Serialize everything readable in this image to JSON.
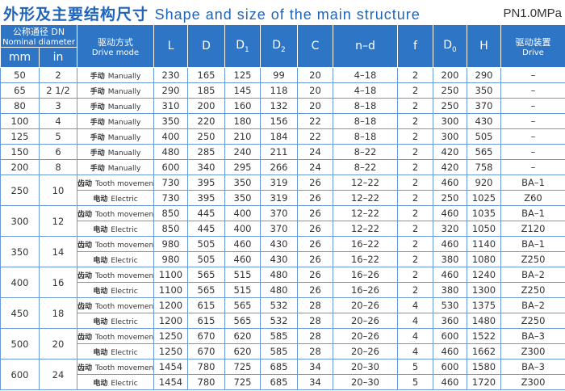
{
  "header": {
    "title_cn": "外形及主要结构尺寸",
    "title_en": "Shape and size of the main structure",
    "pressure": "PN1.0MPa"
  },
  "table": {
    "dn_cn": "公称通径 DN",
    "dn_en": "Nominal diameter",
    "mm": "mm",
    "in": "in",
    "columns": [
      {
        "cn": "驱动方式",
        "en": "Drive mode"
      },
      {
        "text": "L"
      },
      {
        "text": "D"
      },
      {
        "text": "D",
        "sub": "1"
      },
      {
        "text": "D",
        "sub": "2"
      },
      {
        "text": "C"
      },
      {
        "text": "n–d"
      },
      {
        "text": "f"
      },
      {
        "text": "D",
        "sub": "0"
      },
      {
        "text": "H"
      },
      {
        "cn": "驱动装置",
        "en": "Drive"
      }
    ],
    "groups": [
      {
        "mm": 50,
        "in": 2,
        "rows": [
          [
            "手动",
            "Manually",
            230,
            165,
            125,
            99,
            20,
            "4–18",
            2,
            200,
            290,
            "–"
          ]
        ]
      },
      {
        "mm": 65,
        "in": "2 1/2",
        "rows": [
          [
            "手动",
            "Manually",
            290,
            185,
            145,
            118,
            20,
            "4–18",
            2,
            250,
            350,
            "–"
          ]
        ]
      },
      {
        "mm": 80,
        "in": 3,
        "rows": [
          [
            "手动",
            "Manually",
            310,
            200,
            160,
            132,
            20,
            "8–18",
            2,
            250,
            370,
            "–"
          ]
        ]
      },
      {
        "mm": 100,
        "in": 4,
        "rows": [
          [
            "手动",
            "Manually",
            350,
            220,
            180,
            156,
            22,
            "8–18",
            2,
            300,
            430,
            "–"
          ]
        ]
      },
      {
        "mm": 125,
        "in": 5,
        "rows": [
          [
            "手动",
            "Manually",
            400,
            250,
            210,
            184,
            22,
            "8–18",
            2,
            300,
            505,
            "–"
          ]
        ]
      },
      {
        "mm": 150,
        "in": 6,
        "rows": [
          [
            "手动",
            "Manually",
            480,
            285,
            240,
            211,
            24,
            "8–22",
            2,
            420,
            565,
            "–"
          ]
        ]
      },
      {
        "mm": 200,
        "in": 8,
        "rows": [
          [
            "手动",
            "Manually",
            600,
            340,
            295,
            266,
            24,
            "8–22",
            2,
            420,
            758,
            "–"
          ]
        ]
      },
      {
        "mm": 250,
        "in": 10,
        "rows": [
          [
            "齿动",
            "Tooth movement",
            730,
            395,
            350,
            319,
            26,
            "12–22",
            2,
            460,
            920,
            "BA–1"
          ],
          [
            "电动",
            "Electric",
            730,
            395,
            350,
            319,
            26,
            "12–22",
            2,
            250,
            1025,
            "Z60"
          ]
        ]
      },
      {
        "mm": 300,
        "in": 12,
        "rows": [
          [
            "齿动",
            "Tooth movement",
            850,
            445,
            400,
            370,
            26,
            "12–22",
            2,
            460,
            1035,
            "BA–1"
          ],
          [
            "电动",
            "Electric",
            850,
            445,
            400,
            370,
            26,
            "12–22",
            2,
            320,
            1050,
            "Z120"
          ]
        ]
      },
      {
        "mm": 350,
        "in": 14,
        "rows": [
          [
            "齿动",
            "Tooth movement",
            980,
            505,
            460,
            430,
            26,
            "16–22",
            2,
            460,
            1140,
            "BA–1"
          ],
          [
            "电动",
            "Electric",
            980,
            505,
            460,
            430,
            26,
            "16–22",
            2,
            380,
            1080,
            "Z250"
          ]
        ]
      },
      {
        "mm": 400,
        "in": 16,
        "rows": [
          [
            "齿动",
            "Tooth movement",
            1100,
            565,
            515,
            480,
            26,
            "16–26",
            2,
            460,
            1240,
            "BA–2"
          ],
          [
            "电动",
            "Electric",
            1100,
            565,
            515,
            480,
            26,
            "16–26",
            2,
            380,
            1300,
            "Z250"
          ]
        ]
      },
      {
        "mm": 450,
        "in": 18,
        "rows": [
          [
            "齿动",
            "Tooth movement",
            1200,
            615,
            565,
            532,
            28,
            "20–26",
            4,
            530,
            1375,
            "BA–2"
          ],
          [
            "电动",
            "Electric",
            1200,
            615,
            565,
            532,
            28,
            "20–26",
            4,
            360,
            1480,
            "Z250"
          ]
        ]
      },
      {
        "mm": 500,
        "in": 20,
        "rows": [
          [
            "齿动",
            "Tooth movement",
            1250,
            670,
            620,
            585,
            28,
            "20–26",
            4,
            600,
            1522,
            "BA–3"
          ],
          [
            "电动",
            "Electric",
            1250,
            670,
            620,
            585,
            28,
            "20–26",
            4,
            460,
            1662,
            "Z300"
          ]
        ]
      },
      {
        "mm": 600,
        "in": 24,
        "rows": [
          [
            "齿动",
            "Tooth movement",
            1454,
            780,
            725,
            685,
            34,
            "20–30",
            5,
            600,
            1580,
            "BA–3"
          ],
          [
            "电动",
            "Electric",
            1454,
            780,
            725,
            685,
            34,
            "20–30",
            5,
            460,
            1720,
            "Z300"
          ]
        ]
      }
    ]
  }
}
